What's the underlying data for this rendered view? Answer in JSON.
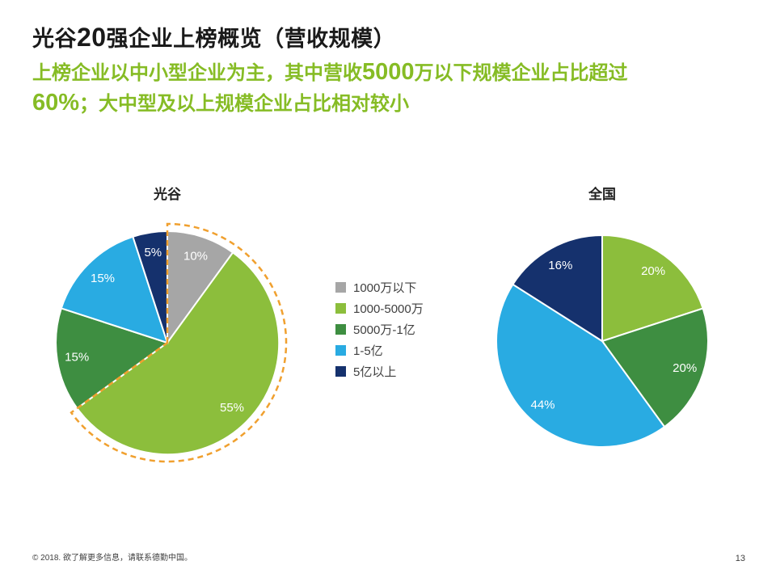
{
  "title": {
    "part1": "光谷",
    "num": "20",
    "part2": "强企业上榜概览（营收规模）"
  },
  "subtitle": {
    "part1": "上榜企业以中小型企业为主，其中营收",
    "num1": "5000",
    "part2": "万以下规模企业占比超过",
    "num2": "60%",
    "part3": "；大中型及以上规模企业占比相对较小"
  },
  "colors": {
    "gray": "#a6a6a6",
    "light_green": "#8cbe3c",
    "dark_green": "#3e8e41",
    "light_blue": "#29abe2",
    "navy": "#15316d",
    "highlight_orange": "#f0a02f",
    "subtitle_green": "#86bc25"
  },
  "legend": {
    "position": "center-between-pies",
    "items": [
      {
        "label": "1000万以下",
        "color": "#a6a6a6"
      },
      {
        "label": "1000-5000万",
        "color": "#8cbe3c"
      },
      {
        "label": "5000万-1亿",
        "color": "#3e8e41"
      },
      {
        "label": "1-5亿",
        "color": "#29abe2"
      },
      {
        "label": "5亿以上",
        "color": "#15316d"
      }
    ]
  },
  "chart_data": [
    {
      "type": "pie",
      "title": "光谷",
      "categories": [
        "1000万以下",
        "1000-5000万",
        "5000万-1亿",
        "1-5亿",
        "5亿以上"
      ],
      "values": [
        10,
        55,
        15,
        15,
        5
      ],
      "labels": [
        "10%",
        "55%",
        "15%",
        "15%",
        "5%"
      ],
      "colors": [
        "#a6a6a6",
        "#8cbe3c",
        "#3e8e41",
        "#29abe2",
        "#15316d"
      ],
      "start_angle": 0,
      "direction": "clockwise",
      "label_radius": 0.82,
      "highlight": {
        "note": "dashed orange outline around 1000万以下 + 1000-5000万 slices (65%)",
        "slices": [
          0,
          1
        ],
        "color": "#f0a02f"
      }
    },
    {
      "type": "pie",
      "title": "全国",
      "categories": [
        "1000-5000万",
        "5000万-1亿",
        "1-5亿",
        "5亿以上"
      ],
      "values": [
        20,
        20,
        44,
        16
      ],
      "labels": [
        "20%",
        "20%",
        "44%",
        "16%"
      ],
      "colors": [
        "#8cbe3c",
        "#3e8e41",
        "#29abe2",
        "#15316d"
      ],
      "start_angle": 0,
      "direction": "clockwise",
      "label_radius": 0.82
    }
  ],
  "footer": {
    "note": "© 2018. 欲了解更多信息，请联系德勤中国。",
    "page_number": "13"
  }
}
